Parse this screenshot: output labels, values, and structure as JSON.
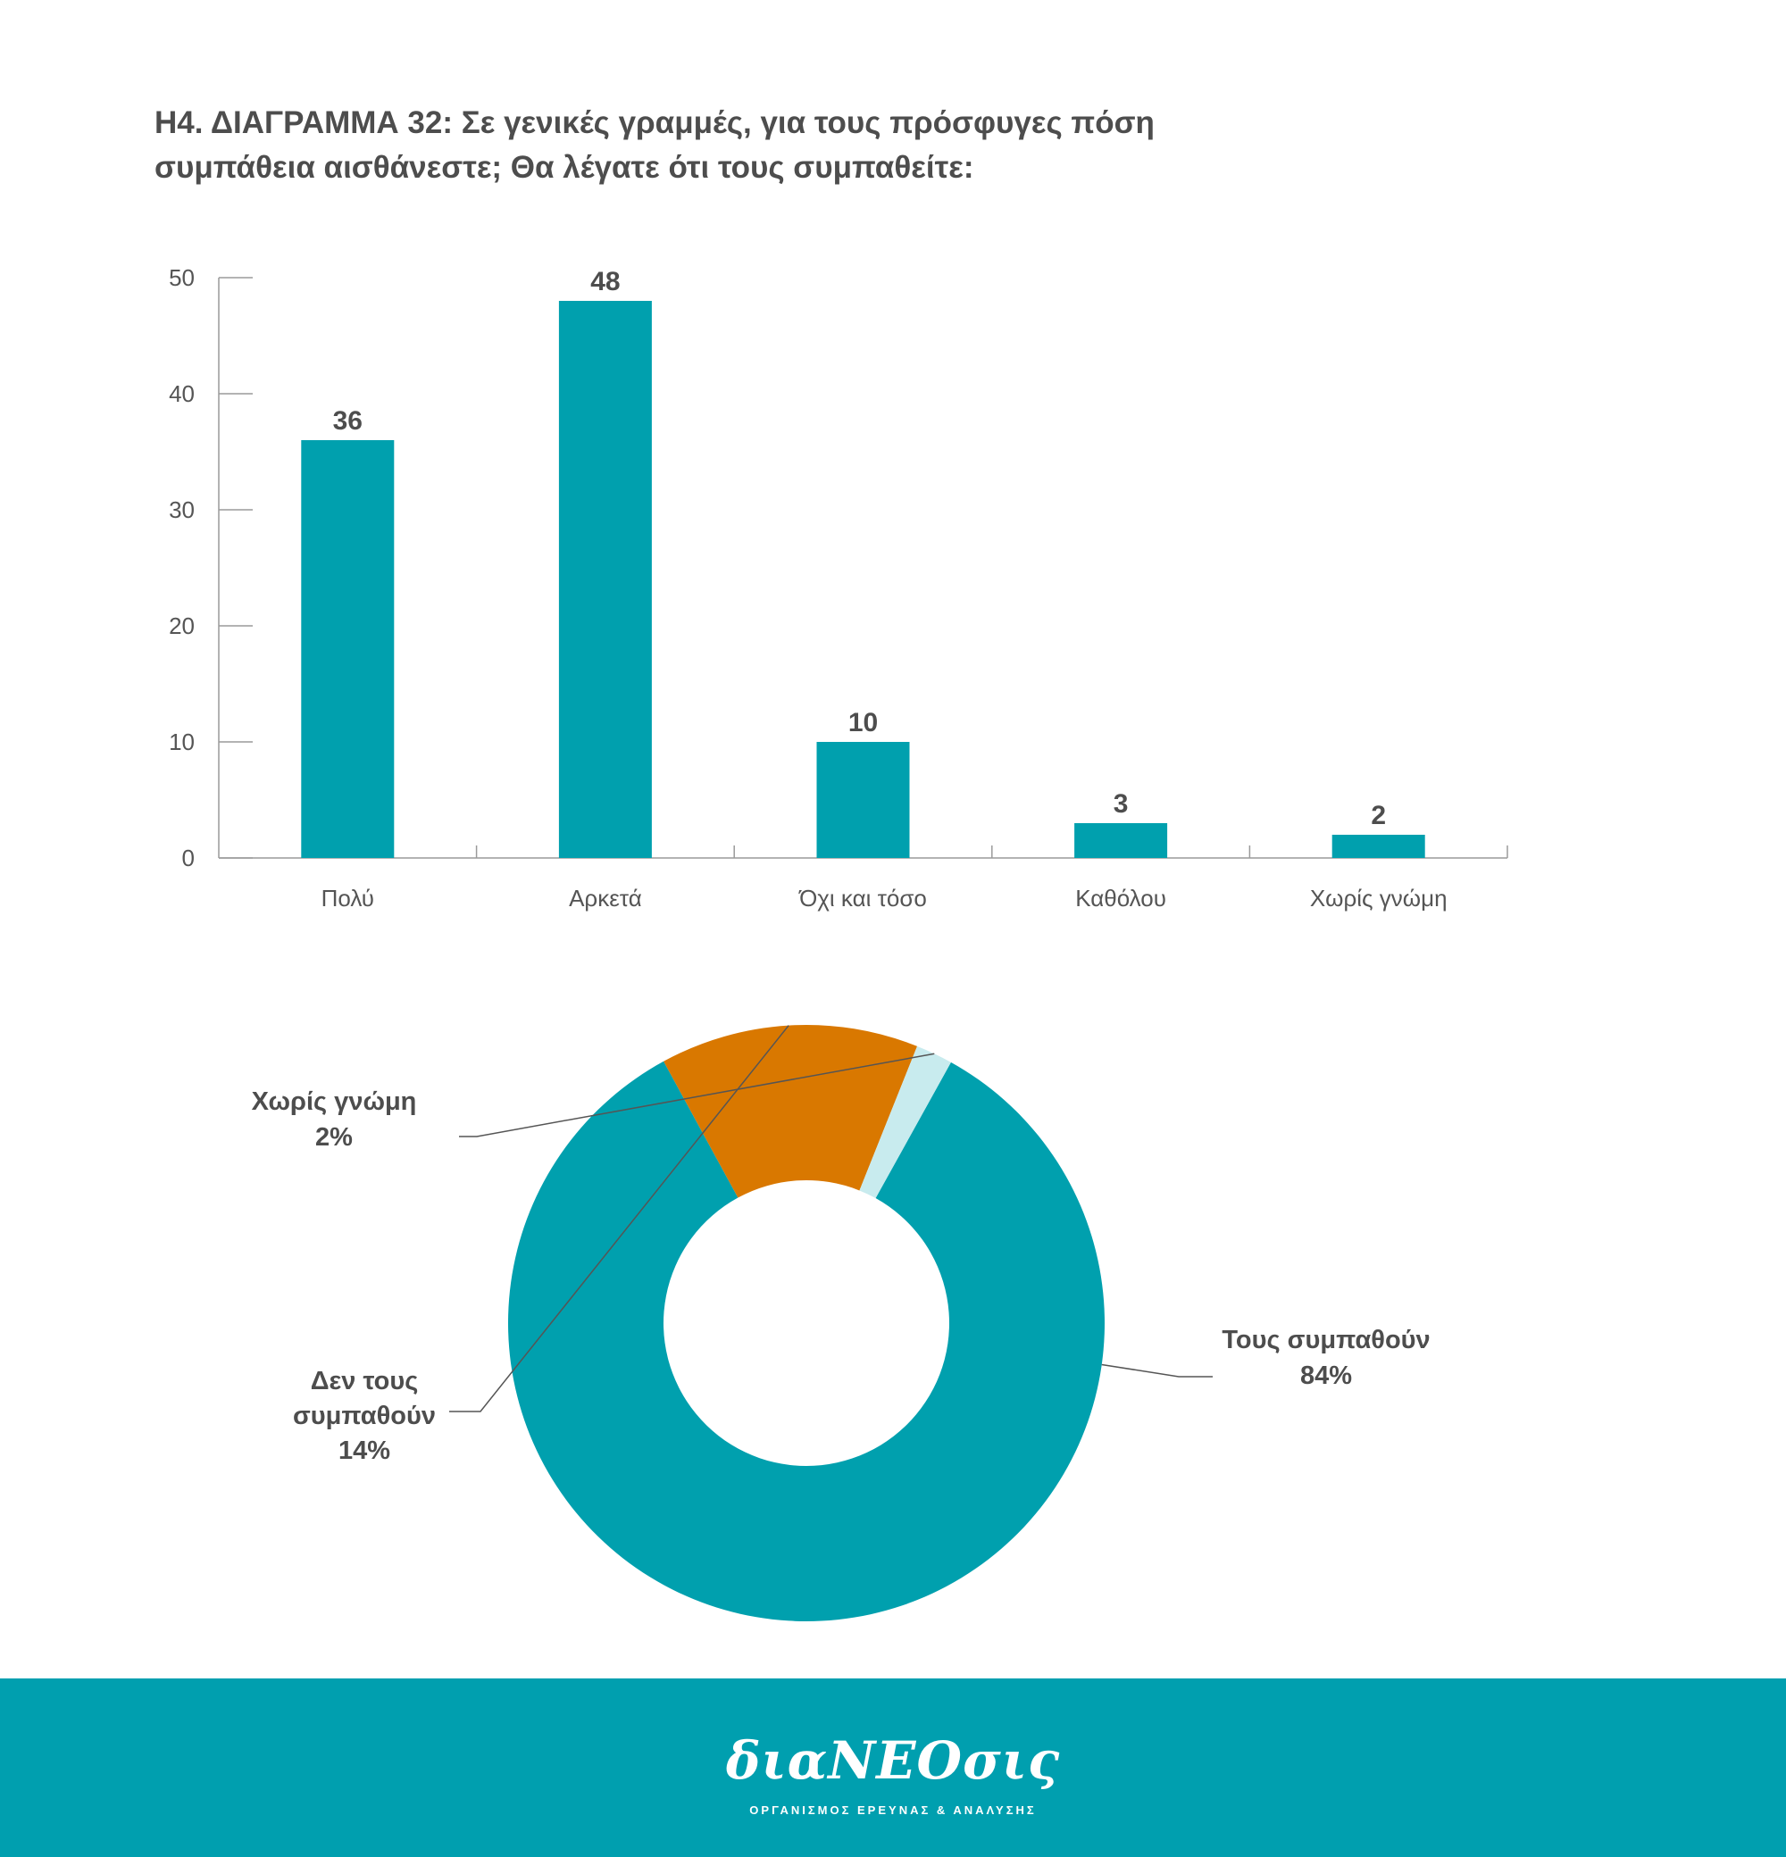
{
  "title": {
    "line1": "Η4. ΔΙΑΓΡΑΜΜΑ 32: Σε γενικές γραμμές, για τους πρόσφυγες πόση",
    "line2": "συμπάθεια αισθάνεστε; Θα λέγατε ότι τους συμπαθείτε:"
  },
  "colors": {
    "teal": "#00a0ae",
    "orange": "#d97800",
    "light": "#c8ebee",
    "footer": "#009faf"
  },
  "chart_data": [
    {
      "type": "bar",
      "categories": [
        "Πολύ",
        "Αρκετά",
        "Όχι και τόσο",
        "Καθόλου",
        "Χωρίς γνώμη"
      ],
      "values": [
        36,
        48,
        10,
        3,
        2
      ],
      "ylim": [
        0,
        50
      ],
      "yticks": [
        0,
        10,
        20,
        30,
        40,
        50
      ],
      "xlabel": "",
      "ylabel": "",
      "grid": false
    },
    {
      "type": "pie",
      "donut": true,
      "slices": [
        {
          "label": "Τους συμπαθούν",
          "value": 84,
          "display": "84%"
        },
        {
          "label": "Δεν τους συμπαθούν",
          "value": 14,
          "display": "14%"
        },
        {
          "label": "Χωρίς γνώμη",
          "value": 2,
          "display": "2%"
        }
      ]
    }
  ],
  "footer": {
    "logo": "διαΝΕΟσις",
    "tagline": "ΟΡΓΑΝΙΣΜΟΣ ΕΡΕΥΝΑΣ & ΑΝΑΛΥΣΗΣ"
  }
}
